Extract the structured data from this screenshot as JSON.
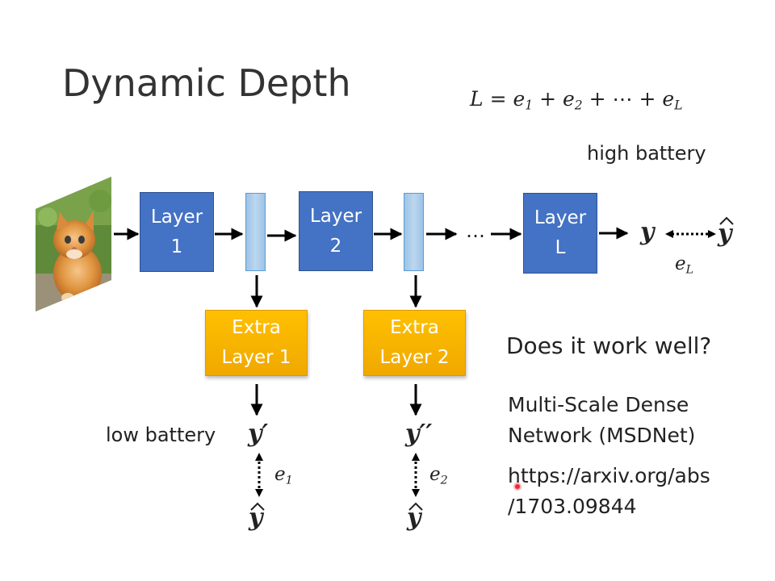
{
  "slide": {
    "title": "Dynamic Depth",
    "formula": {
      "lhs": "L",
      "terms": [
        {
          "base": "e",
          "sub": "1"
        },
        {
          "base": "e",
          "sub": "2"
        },
        {
          "base": "⋯",
          "sub": ""
        },
        {
          "base": "e",
          "sub": "L"
        }
      ],
      "text": "L = e1 + e2 + ⋯ + eL"
    },
    "high_battery": "high battery",
    "low_battery": "low battery",
    "layers": [
      {
        "line1": "Layer",
        "line2": "1"
      },
      {
        "line1": "Layer",
        "line2": "2"
      },
      {
        "line1": "Layer",
        "line2": "L"
      }
    ],
    "ellipsis": "…",
    "extra_layers": [
      {
        "line1": "Extra",
        "line2": "Layer 1"
      },
      {
        "line1": "Extra",
        "line2": "Layer 2"
      }
    ],
    "outputs": {
      "y_main": "y",
      "y_hat": "ŷ",
      "e_L": {
        "base": "e",
        "sub": "L"
      },
      "y1": "y′",
      "y2": "y′′",
      "e_1": {
        "base": "e",
        "sub": "1"
      },
      "e_2": {
        "base": "e",
        "sub": "2"
      }
    },
    "question": "Does it work well?",
    "reference": {
      "line1": "Multi-Scale Dense",
      "line2": "Network (MSDNet)",
      "url_line1": "https://arxiv.org/abs",
      "url_line2": "/1703.09844"
    },
    "image_subject": "kitten-photo"
  }
}
